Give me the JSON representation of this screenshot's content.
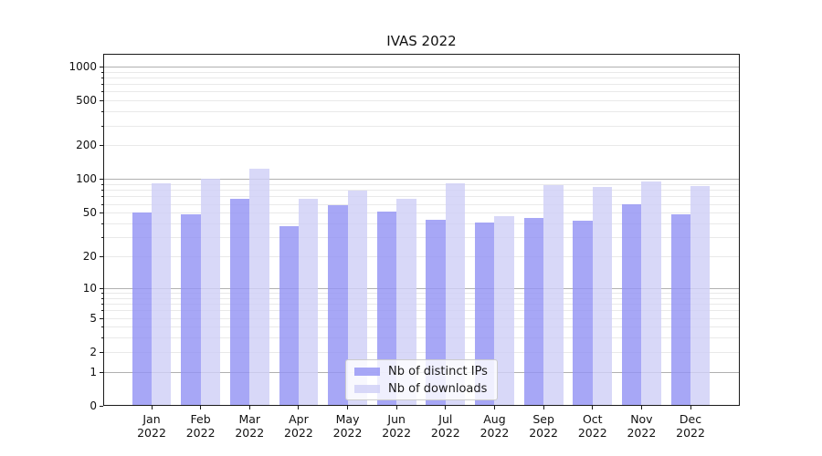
{
  "chart_data": {
    "type": "bar",
    "title": "IVAS 2022",
    "months": [
      "Jan",
      "Feb",
      "Mar",
      "Apr",
      "May",
      "Jun",
      "Jul",
      "Aug",
      "Sep",
      "Oct",
      "Nov",
      "Dec"
    ],
    "year": "2022",
    "series": [
      {
        "name": "Nb of distinct IPs",
        "color": "rgba(148,148,244,0.82)",
        "values": [
          50,
          48,
          67,
          38,
          58,
          51,
          43,
          41,
          45,
          42,
          60,
          48
        ]
      },
      {
        "name": "Nb of downloads",
        "color": "rgba(208,208,246,0.82)",
        "values": [
          91,
          101,
          123,
          67,
          79,
          67,
          92,
          47,
          88,
          85,
          96,
          86
        ]
      }
    ],
    "yscale": "log1p",
    "ylim": [
      0,
      1300
    ],
    "yticks": [
      1000,
      500,
      200,
      100,
      50,
      20,
      10,
      5,
      2,
      1,
      0
    ],
    "grid": true,
    "legend_position": "lower center",
    "colors": {
      "major_grid": "#b0b0b0",
      "minor_grid": "#e9e9e9",
      "axis": "#1a1a1a",
      "background": "#ffffff"
    }
  }
}
